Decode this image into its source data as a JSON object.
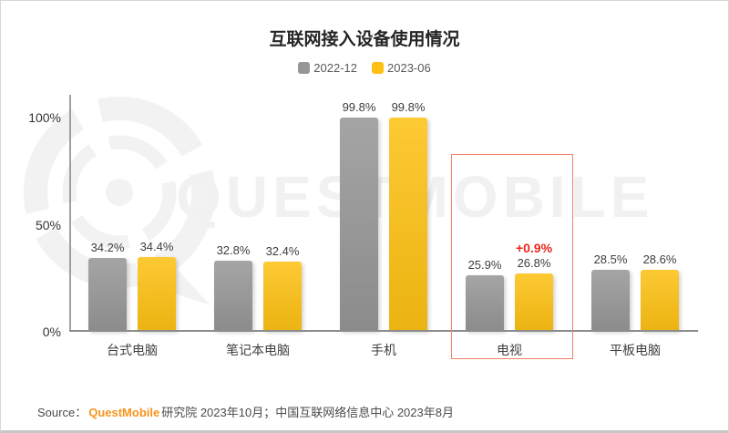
{
  "page": {
    "source": {
      "prefix": "Source：",
      "brand": "QuestMobile",
      "suffix": "研究院 2023年10月；中国互联网络信息中心 2023年8月",
      "brand_color": "#f7941d"
    }
  },
  "chart_data": {
    "type": "bar",
    "title": "互联网接入设备使用情况",
    "categories": [
      "台式电脑",
      "笔记本电脑",
      "手机",
      "电视",
      "平板电脑"
    ],
    "series": [
      {
        "name": "2022-12",
        "color": "#969696",
        "values": [
          34.2,
          32.8,
          99.8,
          25.9,
          28.5
        ]
      },
      {
        "name": "2023-06",
        "color": "#fdc113",
        "values": [
          34.4,
          32.4,
          99.8,
          26.8,
          28.6
        ]
      }
    ],
    "value_suffix": "%",
    "yticks": [
      "0%",
      "50%",
      "100%"
    ],
    "ylim": [
      0,
      110
    ],
    "grid": false,
    "legend_position": "top",
    "highlight": {
      "category": "电视",
      "annotation": "+0.9%",
      "annotation_color": "#e8281d",
      "box_color": "#ef8165"
    },
    "watermark": "QUESTMOBILE"
  }
}
